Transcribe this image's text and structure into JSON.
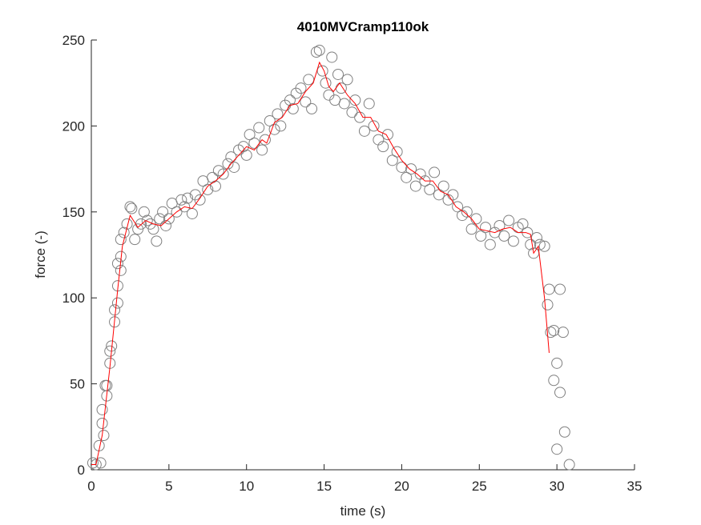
{
  "chart_data": {
    "type": "scatter",
    "title": "4010MVCramp110ok",
    "xlabel": "time (s)",
    "ylabel": "force (-)",
    "xlim": [
      0,
      35
    ],
    "xticks": [
      0,
      5,
      10,
      15,
      20,
      25,
      30,
      35
    ],
    "ylim": [
      0,
      250
    ],
    "yticks": [
      0,
      50,
      100,
      150,
      200,
      250
    ],
    "series": [
      {
        "type": "scatter",
        "color": "#808080",
        "x": [
          0.1,
          0.3,
          0.5,
          0.6,
          0.7,
          0.7,
          0.8,
          0.9,
          1.0,
          1.0,
          1.2,
          1.2,
          1.3,
          1.5,
          1.5,
          1.7,
          1.7,
          1.7,
          1.9,
          1.9,
          1.9,
          2.1,
          2.3,
          2.5,
          2.6,
          2.8,
          3.0,
          3.2,
          3.4,
          3.6,
          3.8,
          4.0,
          4.2,
          4.4,
          4.6,
          4.8,
          5.0,
          5.2,
          5.5,
          5.8,
          6.0,
          6.2,
          6.5,
          6.7,
          7.0,
          7.2,
          7.5,
          7.8,
          8.0,
          8.2,
          8.5,
          8.8,
          9.0,
          9.2,
          9.5,
          9.8,
          10.0,
          10.2,
          10.5,
          10.8,
          11.0,
          11.2,
          11.5,
          11.8,
          12.0,
          12.2,
          12.5,
          12.8,
          13.0,
          13.2,
          13.5,
          13.8,
          14.0,
          14.2,
          14.5,
          14.7,
          14.9,
          15.1,
          15.3,
          15.5,
          15.7,
          15.9,
          16.1,
          16.3,
          16.5,
          16.8,
          17.0,
          17.3,
          17.6,
          17.9,
          18.2,
          18.5,
          18.8,
          19.1,
          19.4,
          19.7,
          20.0,
          20.3,
          20.6,
          20.9,
          21.2,
          21.5,
          21.8,
          22.1,
          22.4,
          22.7,
          23.0,
          23.3,
          23.6,
          23.9,
          24.2,
          24.5,
          24.8,
          25.1,
          25.4,
          25.7,
          26.0,
          26.3,
          26.6,
          26.9,
          27.2,
          27.5,
          27.8,
          28.1,
          28.3,
          28.5,
          28.7,
          28.9,
          29.2,
          29.4,
          29.5,
          29.6,
          29.8,
          29.8,
          30.0,
          30.0,
          30.2,
          30.2,
          30.4,
          30.5,
          30.8
        ],
        "values": [
          4,
          3,
          14,
          4,
          27,
          35,
          20,
          49,
          43,
          49,
          62,
          69,
          72,
          86,
          93,
          97,
          107,
          120,
          116,
          124,
          134,
          138,
          143,
          153,
          152,
          134,
          140,
          143,
          150,
          145,
          143,
          140,
          133,
          146,
          150,
          142,
          146,
          155,
          150,
          157,
          153,
          158,
          149,
          160,
          157,
          168,
          163,
          170,
          165,
          174,
          172,
          178,
          182,
          176,
          186,
          188,
          183,
          195,
          190,
          199,
          186,
          192,
          203,
          198,
          207,
          200,
          212,
          215,
          210,
          219,
          222,
          214,
          227,
          210,
          243,
          244,
          232,
          225,
          218,
          240,
          215,
          230,
          222,
          213,
          227,
          208,
          215,
          205,
          197,
          213,
          200,
          192,
          188,
          195,
          180,
          185,
          176,
          170,
          175,
          165,
          172,
          168,
          163,
          173,
          160,
          165,
          157,
          160,
          153,
          148,
          150,
          140,
          146,
          136,
          141,
          131,
          138,
          142,
          136,
          145,
          133,
          141,
          143,
          138,
          131,
          126,
          135,
          131,
          130,
          96,
          105,
          80,
          81,
          52,
          62,
          12,
          45,
          105,
          80,
          22,
          3
        ]
      },
      {
        "type": "line",
        "color": "#ff0000",
        "x": [
          0,
          0.3,
          0.7,
          1.2,
          1.7,
          2.0,
          2.5,
          3.0,
          3.5,
          4.0,
          4.5,
          5.0,
          5.5,
          6.0,
          6.5,
          7.0,
          7.5,
          8.0,
          8.5,
          9.0,
          9.5,
          10.0,
          10.5,
          11.0,
          11.3,
          11.8,
          12.3,
          12.8,
          13.3,
          13.8,
          14.3,
          14.7,
          15.0,
          15.3,
          15.6,
          16.0,
          16.5,
          17.0,
          17.5,
          18.0,
          18.5,
          19.0,
          19.5,
          20.0,
          20.5,
          21.0,
          21.5,
          22.0,
          22.5,
          23.0,
          23.5,
          24.0,
          24.5,
          25.0,
          25.5,
          26.0,
          26.5,
          27.0,
          27.5,
          28.0,
          28.3,
          28.5,
          28.8,
          29.2,
          29.5
        ],
        "values": [
          3,
          3,
          20,
          60,
          105,
          130,
          148,
          141,
          145,
          143,
          142,
          146,
          150,
          153,
          152,
          158,
          165,
          168,
          172,
          178,
          183,
          188,
          186,
          192,
          190,
          202,
          205,
          212,
          213,
          220,
          225,
          237,
          232,
          223,
          220,
          225,
          218,
          213,
          205,
          205,
          197,
          195,
          187,
          180,
          175,
          172,
          168,
          168,
          162,
          160,
          153,
          150,
          146,
          140,
          139,
          138,
          140,
          141,
          138,
          138,
          137,
          126,
          130,
          100,
          68
        ]
      }
    ]
  }
}
